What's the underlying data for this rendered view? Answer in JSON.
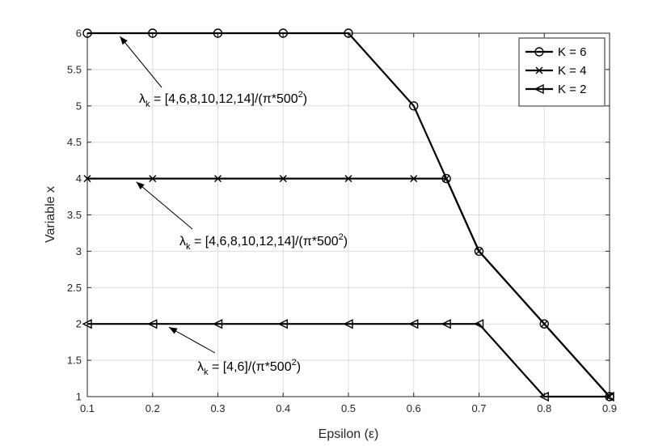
{
  "chart_data": {
    "type": "line",
    "xlabel": "Epsilon (ε)",
    "ylabel": "Variable x",
    "xlim": [
      0.1,
      0.9
    ],
    "ylim": [
      1,
      6
    ],
    "xticks": [
      0.1,
      0.2,
      0.3,
      0.4,
      0.5,
      0.6,
      0.7,
      0.8,
      0.9
    ],
    "yticks": [
      1,
      1.5,
      2,
      2.5,
      3,
      3.5,
      4,
      4.5,
      5,
      5.5,
      6
    ],
    "xtick_labels": [
      "0.1",
      "0.2",
      "0.3",
      "0.4",
      "0.5",
      "0.6",
      "0.7",
      "0.8",
      "0.9"
    ],
    "ytick_labels": [
      "1",
      "1.5",
      "2",
      "2.5",
      "3",
      "3.5",
      "4",
      "4.5",
      "5",
      "5.5",
      "6"
    ],
    "grid": true,
    "legend_position": "top-right",
    "series": [
      {
        "name": "K = 6",
        "marker": "circle",
        "x": [
          0.1,
          0.2,
          0.3,
          0.4,
          0.5,
          0.6,
          0.65,
          0.7,
          0.8,
          0.9
        ],
        "y": [
          6,
          6,
          6,
          6,
          6,
          5,
          4,
          3,
          2,
          1
        ]
      },
      {
        "name": "K = 4",
        "marker": "x",
        "x": [
          0.1,
          0.2,
          0.3,
          0.4,
          0.5,
          0.6,
          0.65,
          0.7,
          0.8,
          0.9
        ],
        "y": [
          4,
          4,
          4,
          4,
          4,
          4,
          4,
          3,
          2,
          1
        ]
      },
      {
        "name": "K = 2",
        "marker": "triangle-left",
        "x": [
          0.1,
          0.2,
          0.3,
          0.4,
          0.5,
          0.6,
          0.65,
          0.7,
          0.8,
          0.9
        ],
        "y": [
          2,
          2,
          2,
          2,
          2,
          2,
          2,
          2,
          1,
          1
        ]
      }
    ],
    "annotations": [
      {
        "prefix": "λ",
        "sub": "k",
        "text": " = [4,6,8,10,12,14]/(π*500",
        "sup": "2",
        "suffix": ")",
        "point": [
          0.15,
          6
        ]
      },
      {
        "prefix": "λ",
        "sub": "k",
        "text": " = [4,6,8,10,12,14]/(π*500",
        "sup": "2",
        "suffix": ")",
        "point": [
          0.175,
          4
        ]
      },
      {
        "prefix": "λ",
        "sub": "k",
        "text": " = [4,6]/(π*500",
        "sup": "2",
        "suffix": ")",
        "point": [
          0.225,
          2
        ]
      }
    ]
  }
}
